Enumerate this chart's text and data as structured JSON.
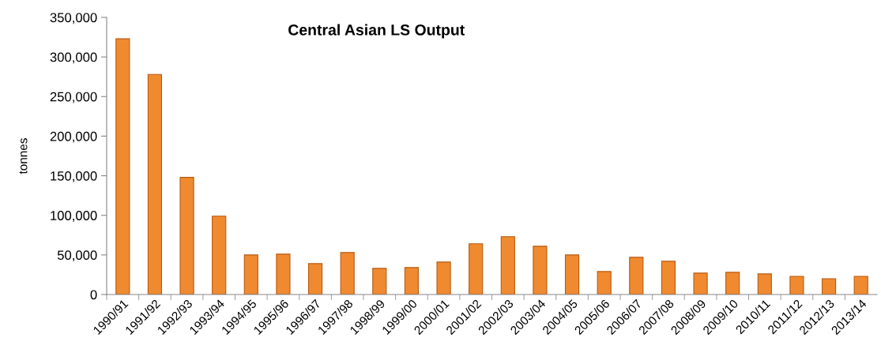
{
  "chart_data": {
    "type": "bar",
    "title": "Central Asian LS Output",
    "ylabel": "tonnes",
    "categories": [
      "1990/91",
      "1991/92",
      "1992/93",
      "1993/94",
      "1994/95",
      "1995/96",
      "1996/97",
      "1997/98",
      "1998/99",
      "1999/00",
      "2000/01",
      "2001/02",
      "2002/03",
      "2003/04",
      "2004/05",
      "2005/06",
      "2006/07",
      "2007/08",
      "2008/09",
      "2009/10",
      "2010/11",
      "2011/12",
      "2012/13",
      "2013/14"
    ],
    "values": [
      323000,
      278000,
      148000,
      99000,
      50000,
      51000,
      39000,
      53000,
      33000,
      34000,
      41000,
      64000,
      73000,
      61000,
      50000,
      29000,
      47000,
      42000,
      27000,
      28000,
      26000,
      23000,
      20000,
      23000
    ],
    "color": "#f08a30",
    "ylim": [
      0,
      350000
    ],
    "yticks": [
      {
        "value": 0,
        "label": "0"
      },
      {
        "value": 50000,
        "label": "50,000"
      },
      {
        "value": 100000,
        "label": "100,000"
      },
      {
        "value": 150000,
        "label": "150,000"
      },
      {
        "value": 200000,
        "label": "200,000"
      },
      {
        "value": 250000,
        "label": "250,000"
      },
      {
        "value": 300000,
        "label": "300,000"
      },
      {
        "value": 350000,
        "label": "350,000"
      }
    ],
    "grid": false
  }
}
